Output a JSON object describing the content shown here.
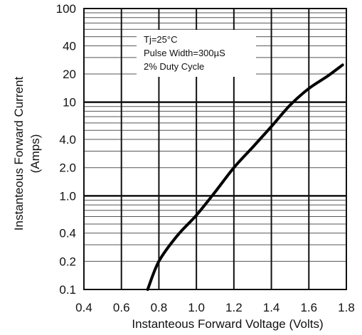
{
  "chart_data": {
    "type": "line",
    "title": "",
    "xlabel": "Instanteous Forward Voltage (Volts)",
    "ylabel_line1": "Instanteous Forward Current",
    "ylabel_line2": "(Amps)",
    "xlim": [
      0.4,
      1.8
    ],
    "ylim": [
      0.1,
      100
    ],
    "y_scale": "log",
    "grid": true,
    "x_ticks": [
      0.4,
      0.6,
      0.8,
      1.0,
      1.2,
      1.4,
      1.6,
      1.8
    ],
    "x_tick_labels": [
      "0.4",
      "0.6",
      "0.8",
      "1.0",
      "1.2",
      "1.4",
      "1.6",
      "1.8"
    ],
    "y_ticks": [
      0.1,
      0.2,
      0.4,
      1,
      2,
      4,
      10,
      20,
      40,
      100
    ],
    "y_tick_labels": [
      "0.1",
      "0.2",
      "0.4",
      "1.0",
      "2.0",
      "4.0",
      "10",
      "20",
      "40",
      "100"
    ],
    "annotations": [
      "Tj=25°C",
      "Pulse Width=300µS",
      "2% Duty Cycle"
    ],
    "series": [
      {
        "x": [
          0.74,
          0.8,
          0.9,
          1.0,
          1.1,
          1.2,
          1.3,
          1.4,
          1.5,
          1.6,
          1.7,
          1.78
        ],
        "y": [
          0.1,
          0.2,
          0.38,
          0.62,
          1.1,
          2.0,
          3.3,
          5.5,
          9.3,
          14,
          19,
          25
        ]
      }
    ]
  }
}
